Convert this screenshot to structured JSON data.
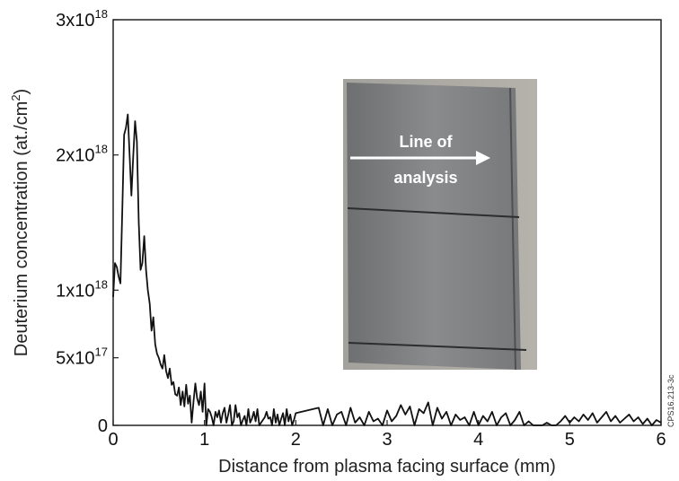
{
  "chart_data": {
    "type": "line",
    "xlabel": "Distance from plasma facing surface (mm)",
    "ylabel_main": "Deuterium concentration (at./cm",
    "ylabel_sup": "2",
    "ylabel_close": ")",
    "xlim": [
      0,
      6
    ],
    "ylim": [
      0,
      3e+18
    ],
    "x_ticks": [
      {
        "value": 0,
        "label": "0"
      },
      {
        "value": 1,
        "label": "1"
      },
      {
        "value": 2,
        "label": "2"
      },
      {
        "value": 3,
        "label": "3"
      },
      {
        "value": 4,
        "label": "4"
      },
      {
        "value": 5,
        "label": "5"
      },
      {
        "value": 6,
        "label": "6"
      }
    ],
    "y_ticks": [
      {
        "value": 0,
        "base": "0",
        "exp": ""
      },
      {
        "value": 5e+17,
        "base": "5x10",
        "exp": "17"
      },
      {
        "value": 1e+18,
        "base": "1x10",
        "exp": "18"
      },
      {
        "value": 2e+18,
        "base": "2x10",
        "exp": "18"
      },
      {
        "value": 3e+18,
        "base": "3x10",
        "exp": "18"
      }
    ],
    "grid": false,
    "series": [
      {
        "color": "#111111",
        "x": [
          0.0,
          0.02,
          0.04,
          0.06,
          0.08,
          0.1,
          0.12,
          0.14,
          0.16,
          0.18,
          0.2,
          0.22,
          0.24,
          0.26,
          0.28,
          0.3,
          0.32,
          0.34,
          0.36,
          0.38,
          0.4,
          0.42,
          0.44,
          0.46,
          0.48,
          0.5,
          0.52,
          0.54,
          0.56,
          0.58,
          0.6,
          0.62,
          0.64,
          0.66,
          0.68,
          0.7,
          0.72,
          0.74,
          0.76,
          0.78,
          0.8,
          0.82,
          0.84,
          0.86,
          0.88,
          0.9,
          0.92,
          0.94,
          0.96,
          0.98,
          1.0,
          1.02,
          1.04,
          1.06,
          1.08,
          1.1,
          1.12,
          1.14,
          1.16,
          1.18,
          1.2,
          1.22,
          1.24,
          1.26,
          1.28,
          1.3,
          1.32,
          1.34,
          1.36,
          1.38,
          1.4,
          1.42,
          1.44,
          1.46,
          1.48,
          1.5,
          1.52,
          1.54,
          1.56,
          1.58,
          1.6,
          1.62,
          1.64,
          1.66,
          1.68,
          1.7,
          1.72,
          1.74,
          1.76,
          1.78,
          1.8,
          1.82,
          1.84,
          1.86,
          1.88,
          1.9,
          1.92,
          1.94,
          1.96,
          1.98,
          2.0,
          2.25,
          2.3,
          2.35,
          2.4,
          2.45,
          2.5,
          2.55,
          2.6,
          2.65,
          2.7,
          2.75,
          2.8,
          2.85,
          2.9,
          2.95,
          3.0,
          3.05,
          3.1,
          3.15,
          3.2,
          3.25,
          3.3,
          3.35,
          3.4,
          3.45,
          3.5,
          3.55,
          3.6,
          3.65,
          3.7,
          3.75,
          3.8,
          3.85,
          3.9,
          3.95,
          4.0,
          4.05,
          4.1,
          4.15,
          4.2,
          4.25,
          4.3,
          4.35,
          4.4,
          4.45,
          4.5,
          4.55,
          4.6,
          4.65,
          4.7,
          4.75,
          4.8,
          4.85,
          4.9,
          4.95,
          5.0,
          5.05,
          5.1,
          5.15,
          5.2,
          5.25,
          5.3,
          5.35,
          5.4,
          5.45,
          5.5,
          5.55,
          5.6,
          5.65,
          5.7,
          5.75,
          5.8,
          5.85,
          5.9,
          5.95,
          6.0
        ],
        "y": [
          9.5e+17,
          1.2e+18,
          1.17e+18,
          1.1e+18,
          1.05e+18,
          1.6e+18,
          2.15e+18,
          2.2e+18,
          2.3e+18,
          2e+18,
          1.7e+18,
          2e+18,
          2.25e+18,
          2.1e+18,
          1.5e+18,
          1.15e+18,
          1.2e+18,
          1.4e+18,
          1.15e+18,
          1e+18,
          9e+17,
          7e+17,
          8e+17,
          6e+17,
          5.3e+17,
          5e+17,
          4.5e+17,
          4.2e+17,
          5.2e+17,
          4e+17,
          3.5e+17,
          4.2e+17,
          3e+17,
          3.2e+17,
          2.3e+17,
          2.2e+17,
          2.8e+17,
          1.5e+17,
          2.5e+17,
          1.4e+17,
          3e+17,
          1.6e+17,
          2.2e+17,
          2e+16,
          1.8e+17,
          3.1e+17,
          2e+17,
          1.5e+17,
          2.5e+17,
          1e+17,
          3.1e+17,
          0,
          1.2e+17,
          1e+17,
          6e+16,
          0,
          1e+17,
          6e+16,
          1.1e+17,
          2e+16,
          9e+16,
          1.3e+17,
          2e+16,
          8e+16,
          1.5e+17,
          0,
          3e+16,
          1.5e+17,
          6e+16,
          9e+16,
          0,
          4e+16,
          7e+16,
          0,
          1.2e+17,
          2e+16,
          5e+16,
          1e+17,
          3e+16,
          1.2e+17,
          0,
          2e+16,
          4e+16,
          6e+16,
          1e+17,
          5e+16,
          6e+16,
          0,
          1.2e+17,
          2e+16,
          8e+16,
          0,
          5e+16,
          9e+16,
          0,
          1.2e+17,
          3e+16,
          8e+16,
          0,
          4e+16,
          9e+16,
          1.3e+17,
          0,
          1.2e+17,
          0,
          8e+16,
          1e+17,
          0,
          1.3e+17,
          2e+16,
          6e+16,
          0,
          1e+17,
          3e+16,
          5e+16,
          0,
          1.1e+17,
          3e+16,
          7e+16,
          1.5e+17,
          8e+16,
          1.4e+17,
          0,
          1.2e+17,
          9e+16,
          1.7e+17,
          0,
          1.3e+17,
          5e+16,
          1e+17,
          0,
          8e+16,
          4e+16,
          6e+16,
          0,
          1e+17,
          0,
          7e+16,
          3e+16,
          1e+17,
          0,
          6e+16,
          9e+16,
          0,
          4e+16,
          1e+17,
          0,
          3e+16,
          0,
          0,
          0,
          2e+16,
          0,
          0,
          3e+16,
          7e+16,
          2e+16,
          6e+16,
          3e+16,
          8e+16,
          4e+16,
          9e+16,
          2e+16,
          6e+16,
          1e+17,
          3e+16,
          7e+16,
          2e+16,
          5e+16,
          8e+16,
          3e+16,
          6e+16,
          1e+16,
          5e+16,
          0,
          4e+16,
          2e+16
        ]
      }
    ]
  },
  "inset": {
    "label_line1": "Line of",
    "label_line2": "analysis"
  },
  "side_id": "CPS16.213-3c"
}
